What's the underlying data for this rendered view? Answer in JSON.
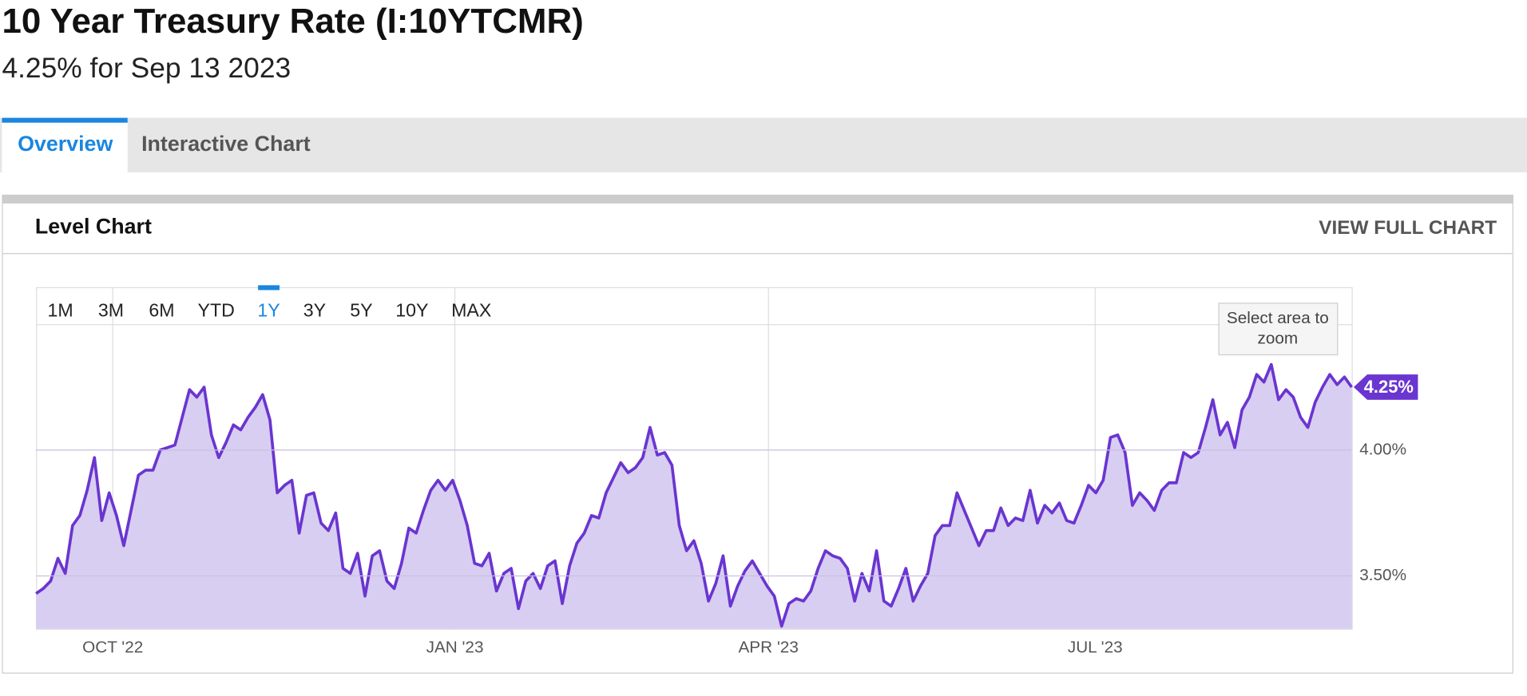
{
  "header": {
    "title": "10 Year Treasury Rate (I:10YTCMR)",
    "subtitle": "4.25% for Sep 13 2023"
  },
  "tabs": [
    "Overview",
    "Interactive Chart"
  ],
  "active_tab": 0,
  "panel": {
    "title": "Level Chart",
    "link": "VIEW FULL CHART"
  },
  "range_buttons": [
    "1M",
    "3M",
    "6M",
    "YTD",
    "1Y",
    "3Y",
    "5Y",
    "10Y",
    "MAX"
  ],
  "active_range": 4,
  "zoom_hint": "Select area to zoom",
  "chart_data": {
    "type": "area",
    "color": "#6a35d0",
    "fill": "#d6cbf0",
    "values": [
      3.43,
      3.45,
      3.48,
      3.57,
      3.51,
      3.7,
      3.74,
      3.84,
      3.97,
      3.72,
      3.83,
      3.74,
      3.62,
      3.76,
      3.9,
      3.92,
      3.92,
      4.0,
      4.01,
      4.02,
      4.13,
      4.24,
      4.21,
      4.25,
      4.06,
      3.97,
      4.03,
      4.1,
      4.08,
      4.13,
      4.17,
      4.22,
      4.12,
      3.83,
      3.86,
      3.88,
      3.67,
      3.82,
      3.83,
      3.71,
      3.68,
      3.75,
      3.53,
      3.51,
      3.59,
      3.42,
      3.58,
      3.6,
      3.48,
      3.45,
      3.55,
      3.69,
      3.67,
      3.76,
      3.84,
      3.88,
      3.84,
      3.88,
      3.8,
      3.7,
      3.55,
      3.54,
      3.59,
      3.44,
      3.51,
      3.53,
      3.37,
      3.48,
      3.51,
      3.45,
      3.54,
      3.56,
      3.39,
      3.54,
      3.63,
      3.67,
      3.74,
      3.73,
      3.83,
      3.89,
      3.95,
      3.91,
      3.93,
      3.97,
      4.09,
      3.98,
      3.99,
      3.94,
      3.7,
      3.6,
      3.64,
      3.55,
      3.4,
      3.47,
      3.58,
      3.38,
      3.46,
      3.52,
      3.56,
      3.51,
      3.46,
      3.42,
      3.3,
      3.39,
      3.41,
      3.4,
      3.44,
      3.53,
      3.6,
      3.58,
      3.57,
      3.53,
      3.4,
      3.51,
      3.44,
      3.6,
      3.4,
      3.38,
      3.45,
      3.53,
      3.4,
      3.46,
      3.51,
      3.66,
      3.7,
      3.7,
      3.83,
      3.76,
      3.69,
      3.62,
      3.68,
      3.68,
      3.77,
      3.7,
      3.73,
      3.72,
      3.84,
      3.71,
      3.78,
      3.75,
      3.79,
      3.72,
      3.71,
      3.78,
      3.86,
      3.83,
      3.88,
      4.05,
      4.06,
      3.99,
      3.78,
      3.83,
      3.8,
      3.76,
      3.84,
      3.87,
      3.87,
      3.99,
      3.97,
      3.99,
      4.09,
      4.2,
      4.06,
      4.11,
      4.01,
      4.16,
      4.21,
      4.3,
      4.27,
      4.34,
      4.2,
      4.24,
      4.21,
      4.13,
      4.09,
      4.19,
      4.25,
      4.3,
      4.26,
      4.29,
      4.25
    ],
    "last_label": "4.25%",
    "xlim": [
      0,
      180
    ],
    "xticks": [
      {
        "value": 10.5,
        "label": "OCT '22"
      },
      {
        "value": 57.3,
        "label": "JAN '23"
      },
      {
        "value": 100.2,
        "label": "APR '23"
      },
      {
        "value": 144.9,
        "label": "JUL '23"
      }
    ],
    "ylim": [
      3.29,
      4.5
    ],
    "yticks": [
      {
        "value": 3.5,
        "label": "3.50%"
      },
      {
        "value": 4,
        "label": "4.00%"
      }
    ],
    "grid": true
  }
}
